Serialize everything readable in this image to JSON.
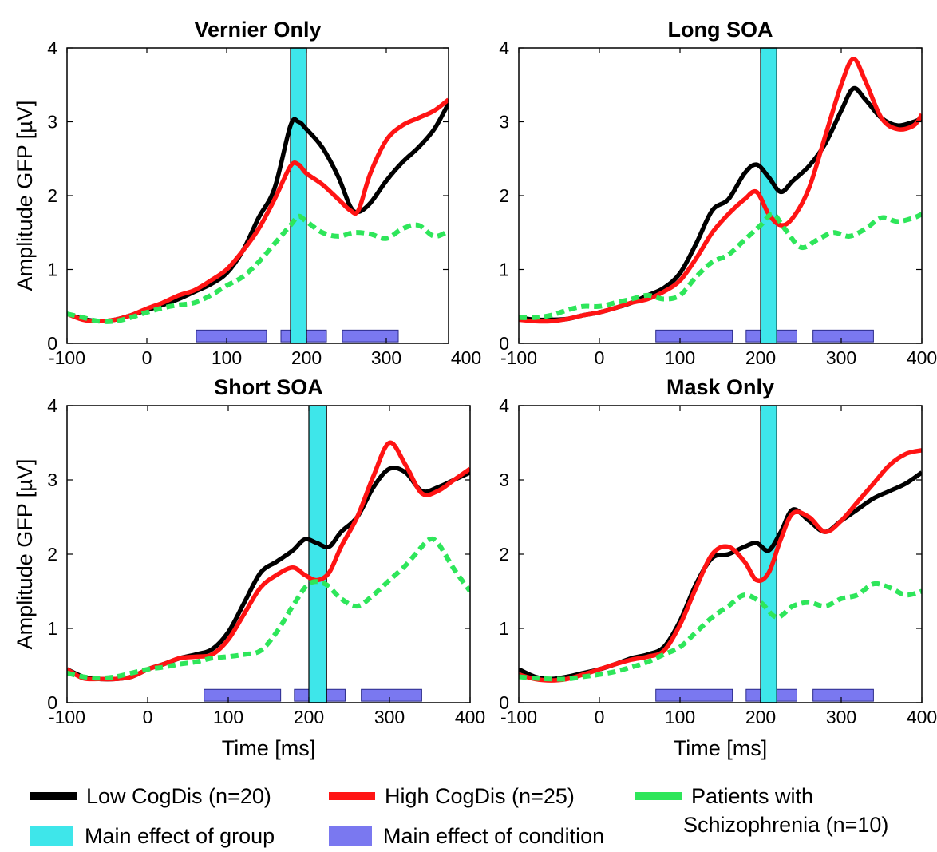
{
  "chart_data": [
    {
      "type": "line",
      "title": "Vernier Only",
      "ylabel": "Amplitude GFP [µV]",
      "xlabel": "",
      "xlim": [
        -100,
        378
      ],
      "ylim": [
        0,
        4
      ],
      "xticks": [
        "-100",
        "0",
        "100",
        "200",
        "300",
        "400"
      ],
      "yticks": [
        "0",
        "1",
        "2",
        "3",
        "4"
      ],
      "group_band": [
        180,
        200
      ],
      "condition_bars": [
        [
          62,
          150
        ],
        [
          168,
          225
        ],
        [
          245,
          315
        ]
      ],
      "series": [
        {
          "name": "Low CogDis (n=20)",
          "x": [
            -100,
            -80,
            -60,
            -40,
            -20,
            0,
            20,
            40,
            60,
            80,
            100,
            120,
            140,
            160,
            180,
            190,
            200,
            220,
            240,
            255,
            265,
            280,
            300,
            320,
            340,
            360,
            378
          ],
          "y": [
            0.4,
            0.33,
            0.3,
            0.32,
            0.38,
            0.45,
            0.52,
            0.6,
            0.7,
            0.8,
            0.95,
            1.25,
            1.7,
            2.1,
            2.95,
            3.0,
            2.9,
            2.65,
            2.25,
            1.85,
            1.78,
            1.9,
            2.2,
            2.45,
            2.65,
            2.9,
            3.25
          ]
        },
        {
          "name": "High CogDis (n=25)",
          "x": [
            -100,
            -80,
            -60,
            -40,
            -20,
            0,
            20,
            40,
            60,
            80,
            100,
            120,
            140,
            160,
            180,
            190,
            200,
            220,
            240,
            255,
            265,
            280,
            300,
            320,
            340,
            360,
            378
          ],
          "y": [
            0.4,
            0.32,
            0.3,
            0.32,
            0.38,
            0.47,
            0.55,
            0.65,
            0.72,
            0.85,
            1.0,
            1.25,
            1.55,
            1.95,
            2.4,
            2.42,
            2.3,
            2.15,
            1.95,
            1.8,
            1.8,
            2.3,
            2.75,
            2.95,
            3.05,
            3.15,
            3.3
          ]
        },
        {
          "name": "Patients with Schizophrenia (n=10)",
          "x": [
            -100,
            -80,
            -60,
            -40,
            -20,
            0,
            20,
            40,
            60,
            80,
            100,
            120,
            140,
            160,
            180,
            190,
            200,
            220,
            240,
            260,
            280,
            300,
            320,
            340,
            360,
            378
          ],
          "y": [
            0.4,
            0.35,
            0.3,
            0.3,
            0.35,
            0.42,
            0.48,
            0.52,
            0.55,
            0.65,
            0.78,
            0.9,
            1.1,
            1.35,
            1.6,
            1.72,
            1.65,
            1.5,
            1.45,
            1.5,
            1.48,
            1.42,
            1.55,
            1.6,
            1.45,
            1.52
          ]
        }
      ]
    },
    {
      "type": "line",
      "title": "Long SOA",
      "ylabel": "",
      "xlabel": "",
      "xlim": [
        -100,
        400
      ],
      "ylim": [
        0,
        4
      ],
      "xticks": [
        "-100",
        "0",
        "100",
        "200",
        "300",
        "400"
      ],
      "yticks": [
        "0",
        "1",
        "2",
        "3",
        "4"
      ],
      "group_band": [
        200,
        220
      ],
      "condition_bars": [
        [
          70,
          165
        ],
        [
          182,
          245
        ],
        [
          265,
          340
        ]
      ],
      "series": [
        {
          "name": "Low CogDis (n=20)",
          "x": [
            -100,
            -80,
            -60,
            -40,
            -20,
            0,
            20,
            40,
            60,
            80,
            100,
            120,
            140,
            160,
            180,
            195,
            210,
            225,
            240,
            260,
            280,
            300,
            315,
            330,
            350,
            370,
            390,
            400
          ],
          "y": [
            0.35,
            0.32,
            0.32,
            0.33,
            0.38,
            0.42,
            0.48,
            0.55,
            0.65,
            0.75,
            0.95,
            1.35,
            1.8,
            1.95,
            2.3,
            2.42,
            2.25,
            2.05,
            2.2,
            2.4,
            2.7,
            3.15,
            3.45,
            3.3,
            3.05,
            2.95,
            3.0,
            3.05
          ]
        },
        {
          "name": "High CogDis (n=25)",
          "x": [
            -100,
            -80,
            -60,
            -40,
            -20,
            0,
            20,
            40,
            60,
            80,
            100,
            120,
            140,
            160,
            180,
            195,
            210,
            225,
            240,
            260,
            280,
            300,
            315,
            330,
            350,
            370,
            390,
            400
          ],
          "y": [
            0.32,
            0.3,
            0.3,
            0.33,
            0.38,
            0.42,
            0.48,
            0.55,
            0.6,
            0.7,
            0.85,
            1.15,
            1.5,
            1.75,
            1.95,
            2.05,
            1.75,
            1.6,
            1.7,
            2.1,
            2.8,
            3.5,
            3.85,
            3.55,
            3.05,
            2.9,
            2.95,
            3.1
          ]
        },
        {
          "name": "Patients with Schizophrenia (n=10)",
          "x": [
            -100,
            -80,
            -60,
            -40,
            -20,
            0,
            20,
            40,
            60,
            80,
            100,
            120,
            140,
            160,
            180,
            200,
            215,
            230,
            250,
            270,
            290,
            310,
            330,
            350,
            370,
            390,
            400
          ],
          "y": [
            0.35,
            0.35,
            0.38,
            0.45,
            0.5,
            0.5,
            0.55,
            0.6,
            0.65,
            0.6,
            0.65,
            0.9,
            1.1,
            1.2,
            1.4,
            1.6,
            1.75,
            1.55,
            1.3,
            1.4,
            1.5,
            1.45,
            1.55,
            1.7,
            1.65,
            1.7,
            1.75
          ]
        }
      ]
    },
    {
      "type": "line",
      "title": "Short SOA",
      "ylabel": "Amplitude GFP [µV]",
      "xlabel": "Time [ms]",
      "xlim": [
        -100,
        400
      ],
      "ylim": [
        0,
        4
      ],
      "xticks": [
        "-100",
        "0",
        "100",
        "200",
        "300",
        "400"
      ],
      "yticks": [
        "0",
        "1",
        "2",
        "3",
        "4"
      ],
      "group_band": [
        200,
        222
      ],
      "condition_bars": [
        [
          70,
          165
        ],
        [
          182,
          245
        ],
        [
          265,
          340
        ]
      ],
      "series": [
        {
          "name": "Low CogDis (n=20)",
          "x": [
            -100,
            -80,
            -60,
            -40,
            -20,
            0,
            20,
            40,
            60,
            80,
            100,
            120,
            140,
            160,
            180,
            195,
            210,
            225,
            240,
            260,
            280,
            300,
            320,
            340,
            360,
            380,
            400
          ],
          "y": [
            0.45,
            0.35,
            0.32,
            0.32,
            0.35,
            0.45,
            0.52,
            0.6,
            0.65,
            0.72,
            0.95,
            1.35,
            1.75,
            1.9,
            2.05,
            2.2,
            2.15,
            2.1,
            2.3,
            2.5,
            2.9,
            3.15,
            3.1,
            2.85,
            2.9,
            3.0,
            3.1
          ]
        },
        {
          "name": "High CogDis (n=25)",
          "x": [
            -100,
            -80,
            -60,
            -40,
            -20,
            0,
            20,
            40,
            60,
            80,
            100,
            120,
            140,
            160,
            180,
            195,
            210,
            225,
            240,
            260,
            280,
            300,
            320,
            340,
            360,
            380,
            400
          ],
          "y": [
            0.45,
            0.33,
            0.32,
            0.32,
            0.35,
            0.45,
            0.52,
            0.6,
            0.62,
            0.65,
            0.85,
            1.2,
            1.55,
            1.72,
            1.82,
            1.72,
            1.65,
            1.75,
            2.1,
            2.5,
            3.05,
            3.5,
            3.2,
            2.82,
            2.85,
            3.0,
            3.15
          ]
        },
        {
          "name": "Patients with Schizophrenia (n=10)",
          "x": [
            -100,
            -80,
            -60,
            -40,
            -20,
            0,
            20,
            40,
            60,
            80,
            100,
            120,
            140,
            160,
            180,
            200,
            220,
            240,
            260,
            280,
            300,
            320,
            340,
            350,
            360,
            380,
            400
          ],
          "y": [
            0.4,
            0.35,
            0.33,
            0.35,
            0.4,
            0.45,
            0.48,
            0.52,
            0.55,
            0.6,
            0.62,
            0.65,
            0.7,
            0.95,
            1.3,
            1.6,
            1.6,
            1.4,
            1.3,
            1.45,
            1.65,
            1.85,
            2.1,
            2.2,
            2.15,
            1.8,
            1.5
          ]
        }
      ]
    },
    {
      "type": "line",
      "title": "Mask Only",
      "ylabel": "",
      "xlabel": "Time [ms]",
      "xlim": [
        -100,
        400
      ],
      "ylim": [
        0,
        4
      ],
      "xticks": [
        "-100",
        "0",
        "100",
        "200",
        "300",
        "400"
      ],
      "yticks": [
        "0",
        "1",
        "2",
        "3",
        "4"
      ],
      "group_band": [
        200,
        220
      ],
      "condition_bars": [
        [
          70,
          165
        ],
        [
          182,
          245
        ],
        [
          265,
          340
        ]
      ],
      "series": [
        {
          "name": "Low CogDis (n=20)",
          "x": [
            -100,
            -80,
            -60,
            -40,
            -20,
            0,
            20,
            40,
            60,
            80,
            100,
            120,
            140,
            160,
            180,
            195,
            210,
            225,
            240,
            260,
            280,
            300,
            320,
            340,
            360,
            380,
            400
          ],
          "y": [
            0.45,
            0.35,
            0.32,
            0.35,
            0.4,
            0.45,
            0.52,
            0.6,
            0.65,
            0.75,
            1.1,
            1.6,
            1.95,
            2.0,
            2.1,
            2.15,
            2.05,
            2.3,
            2.6,
            2.45,
            2.3,
            2.45,
            2.6,
            2.75,
            2.85,
            2.95,
            3.1
          ]
        },
        {
          "name": "High CogDis (n=25)",
          "x": [
            -100,
            -80,
            -60,
            -40,
            -20,
            0,
            20,
            40,
            60,
            80,
            100,
            120,
            140,
            160,
            180,
            195,
            210,
            225,
            240,
            260,
            280,
            300,
            320,
            340,
            360,
            380,
            400
          ],
          "y": [
            0.38,
            0.32,
            0.3,
            0.32,
            0.38,
            0.45,
            0.52,
            0.58,
            0.62,
            0.7,
            1.05,
            1.55,
            2.0,
            2.1,
            1.9,
            1.65,
            1.75,
            2.2,
            2.55,
            2.5,
            2.3,
            2.45,
            2.7,
            2.95,
            3.2,
            3.35,
            3.4
          ]
        },
        {
          "name": "Patients with Schizophrenia (n=10)",
          "x": [
            -100,
            -80,
            -60,
            -40,
            -20,
            0,
            20,
            40,
            60,
            80,
            100,
            120,
            140,
            160,
            180,
            200,
            220,
            240,
            260,
            280,
            300,
            320,
            340,
            360,
            380,
            400
          ],
          "y": [
            0.35,
            0.33,
            0.32,
            0.32,
            0.35,
            0.38,
            0.42,
            0.48,
            0.55,
            0.65,
            0.75,
            0.95,
            1.15,
            1.3,
            1.45,
            1.35,
            1.15,
            1.3,
            1.35,
            1.3,
            1.4,
            1.45,
            1.6,
            1.55,
            1.45,
            1.5
          ]
        }
      ]
    }
  ],
  "legend": {
    "low": "Low CogDis (n=20)",
    "high": "High CogDis (n=25)",
    "patients_line1": "Patients with",
    "patients_line2": "Schizophrenia (n=10)",
    "group": "Main effect of group",
    "condition": "Main effect of condition"
  },
  "colors": {
    "low": "#000000",
    "high": "#ff1414",
    "patients": "#2ee65a",
    "group": "#3ee6ea",
    "condition": "#7a78f0"
  }
}
